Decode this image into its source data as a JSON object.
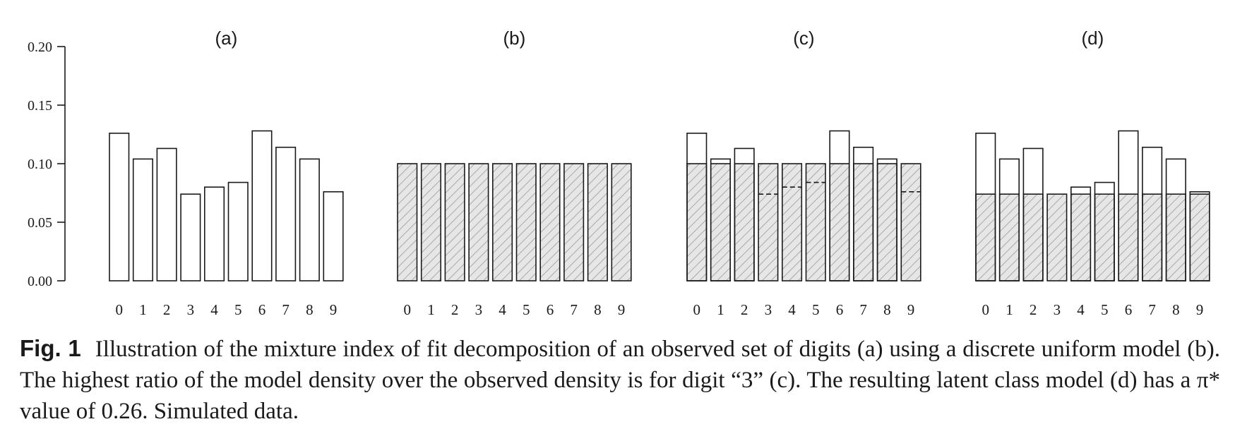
{
  "chart_data": [
    {
      "type": "bar",
      "panel": "a",
      "title": "(a)",
      "categories": [
        "0",
        "1",
        "2",
        "3",
        "4",
        "5",
        "6",
        "7",
        "8",
        "9"
      ],
      "series": [
        {
          "values": [
            0.126,
            0.104,
            0.113,
            0.074,
            0.08,
            0.084,
            0.128,
            0.114,
            0.104,
            0.076
          ],
          "style": "outline"
        }
      ],
      "ylim": [
        0,
        0.2
      ],
      "yticks": [
        "0.00",
        "0.05",
        "0.10",
        "0.15",
        "0.20"
      ]
    },
    {
      "type": "bar",
      "panel": "b",
      "title": "(b)",
      "categories": [
        "0",
        "1",
        "2",
        "3",
        "4",
        "5",
        "6",
        "7",
        "8",
        "9"
      ],
      "series": [
        {
          "values": [
            0.1,
            0.1,
            0.1,
            0.1,
            0.1,
            0.1,
            0.1,
            0.1,
            0.1,
            0.1
          ],
          "style": "hatched"
        }
      ],
      "ylim": [
        0,
        0.2
      ]
    },
    {
      "type": "bar",
      "panel": "c",
      "title": "(c)",
      "categories": [
        "0",
        "1",
        "2",
        "3",
        "4",
        "5",
        "6",
        "7",
        "8",
        "9"
      ],
      "series": [
        {
          "values": [
            0.1,
            0.1,
            0.1,
            0.1,
            0.1,
            0.1,
            0.1,
            0.1,
            0.1,
            0.1
          ],
          "style": "hatched"
        },
        {
          "values": [
            0.126,
            0.104,
            0.113,
            0.074,
            0.08,
            0.084,
            0.128,
            0.114,
            0.104,
            0.076
          ],
          "style": "outline-and-dashed"
        }
      ],
      "ylim": [
        0,
        0.2
      ]
    },
    {
      "type": "bar",
      "panel": "d",
      "title": "(d)",
      "categories": [
        "0",
        "1",
        "2",
        "3",
        "4",
        "5",
        "6",
        "7",
        "8",
        "9"
      ],
      "series": [
        {
          "values": [
            0.074,
            0.074,
            0.074,
            0.074,
            0.074,
            0.074,
            0.074,
            0.074,
            0.074,
            0.074
          ],
          "style": "hatched"
        },
        {
          "values": [
            0.126,
            0.104,
            0.113,
            0.074,
            0.08,
            0.084,
            0.128,
            0.114,
            0.104,
            0.076
          ],
          "style": "outline"
        }
      ],
      "ylim": [
        0,
        0.2
      ]
    }
  ],
  "caption": {
    "label": "Fig. 1",
    "text": "Illustration of the mixture index of fit decomposition of an observed set of digits (a) using a discrete uniform model (b). The highest ratio of the model density over the observed density is for digit “3” (c). The resulting latent class model (d) has a π* value of 0.26. Simulated data."
  },
  "colors": {
    "bar_outline": "#1a1a1a",
    "hatch_fill": "#e6e6e6",
    "hatch_line": "#9a9a9a"
  }
}
